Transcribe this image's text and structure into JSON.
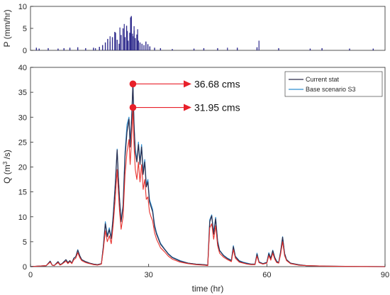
{
  "chart_data": [
    {
      "type": "bar",
      "panel": "precipitation",
      "ylabel": "P (mm/hr)",
      "xlim": [
        0,
        90
      ],
      "ylim": [
        0,
        10
      ],
      "yticks": [
        0,
        5,
        10
      ],
      "grid": false,
      "bar_color": "#2e2a8c",
      "x": [
        1.5,
        2.2,
        4.5,
        7.0,
        8.5,
        10.0,
        12.0,
        14.0,
        16.0,
        17.5,
        18.3,
        19.0,
        19.6,
        20.2,
        20.8,
        21.4,
        22.0,
        22.5,
        23.0,
        23.5,
        24.0,
        24.4,
        24.8,
        25.2,
        25.6,
        26.0,
        26.3,
        26.6,
        27.0,
        27.4,
        27.8,
        28.3,
        28.8,
        29.3,
        29.8,
        30.3,
        31.5,
        33.0,
        36.0,
        41.5,
        44.0,
        47.5,
        52.5,
        57.5,
        63.0,
        71.0,
        74.0,
        81.0,
        87.0
      ],
      "values": [
        0.6,
        0.4,
        0.5,
        0.4,
        0.5,
        0.6,
        0.7,
        0.5,
        0.6,
        0.8,
        1.2,
        1.8,
        2.6,
        2.0,
        3.0,
        4.2,
        2.4,
        1.5,
        3.5,
        5.0,
        3.0,
        5.6,
        2.2,
        4.0,
        7.8,
        3.2,
        4.5,
        2.8,
        3.6,
        2.2,
        1.8,
        1.5,
        1.2,
        2.0,
        1.4,
        0.9,
        0.6,
        0.5,
        0.3,
        0.4,
        0.5,
        0.5,
        0.6,
        0.7,
        0.5,
        0.4,
        0.5,
        0.4,
        0.4
      ],
      "stem_values": [
        [
          25.4,
          7.5
        ],
        [
          23.8,
          6.0
        ],
        [
          26.3,
          5.5
        ],
        [
          22.7,
          5.2
        ],
        [
          27.2,
          4.8
        ],
        [
          21.6,
          4.0
        ],
        [
          24.6,
          4.4
        ],
        [
          20.2,
          3.2
        ],
        [
          25.9,
          3.8
        ],
        [
          58.0,
          2.2
        ],
        [
          16.5,
          0.5
        ],
        [
          50.0,
          0.6
        ]
      ]
    },
    {
      "type": "line",
      "panel": "discharge",
      "xlabel": "time (hr)",
      "ylabel_main": "Q (m",
      "ylabel_sup": "3",
      "ylabel_end": " /s)",
      "xlim": [
        0,
        90
      ],
      "ylim": [
        0,
        40
      ],
      "xticks": [
        0,
        30,
        60,
        90
      ],
      "yticks": [
        0,
        5,
        10,
        15,
        20,
        25,
        30,
        35,
        40
      ],
      "grid": false,
      "legend_placement": "top-right",
      "series": [
        {
          "name": "Current stat",
          "color": "#2b2b4a",
          "x": [
            0,
            4,
            5,
            5.5,
            6,
            7,
            7.5,
            8,
            9,
            9.5,
            10,
            10.5,
            11,
            11.5,
            12,
            12.5,
            13,
            14,
            15,
            16,
            17,
            18,
            18.5,
            19,
            19.5,
            20,
            20.5,
            21,
            21.5,
            22,
            22.3,
            22.6,
            23,
            23.5,
            24,
            24.5,
            25,
            25.3,
            25.7,
            26,
            26.3,
            26.6,
            27,
            27.4,
            27.8,
            28.2,
            28.6,
            29,
            29.4,
            29.8,
            30.2,
            30.6,
            31,
            31.5,
            32,
            33,
            34,
            35,
            36,
            38,
            40,
            42,
            44,
            45,
            45.5,
            46,
            46.5,
            47,
            47.5,
            48,
            49,
            50,
            51,
            51.5,
            52,
            53,
            54,
            55,
            56,
            57,
            57.5,
            58,
            59,
            60,
            60.5,
            61,
            61.5,
            62,
            62.5,
            63,
            63.5,
            64,
            64.5,
            65,
            66,
            68,
            70,
            75,
            80,
            85,
            90
          ],
          "y": [
            0,
            0.2,
            1.1,
            0.3,
            0.2,
            1.0,
            0.4,
            0.6,
            1.4,
            0.8,
            1.2,
            0.7,
            1.7,
            2.0,
            3.3,
            2.2,
            1.4,
            1.0,
            0.7,
            0.5,
            0.4,
            0.6,
            4.0,
            8.6,
            6.0,
            7.4,
            5.6,
            10.0,
            16.0,
            23.4,
            18.0,
            13.5,
            9.0,
            12.0,
            22.0,
            27.0,
            29.6,
            24.0,
            30.0,
            36.68,
            28.0,
            23.0,
            21.0,
            24.5,
            20.5,
            24.0,
            18.5,
            21.0,
            16.0,
            17.0,
            13.0,
            12.0,
            11.0,
            8.0,
            6.5,
            4.5,
            3.5,
            2.5,
            1.8,
            1.1,
            0.7,
            0.5,
            0.4,
            0.3,
            9.0,
            10.2,
            6.5,
            9.6,
            5.0,
            3.2,
            2.2,
            1.6,
            1.2,
            4.0,
            2.0,
            1.1,
            0.8,
            0.6,
            0.5,
            0.5,
            2.5,
            0.9,
            0.6,
            0.8,
            2.6,
            1.6,
            3.2,
            1.8,
            1.0,
            0.8,
            3.0,
            5.9,
            2.6,
            1.4,
            0.7,
            0.4,
            0.2,
            0.1,
            0.05,
            0.02,
            0
          ]
        },
        {
          "name": "Base scenario S3",
          "color": "#2f8fd0",
          "x": [
            0,
            4,
            5,
            5.5,
            6,
            7,
            7.5,
            8,
            9,
            9.5,
            10,
            10.5,
            11,
            11.5,
            12,
            12.5,
            13,
            14,
            15,
            16,
            17,
            18,
            18.5,
            19,
            19.5,
            20,
            20.5,
            21,
            21.5,
            22,
            22.3,
            22.6,
            23,
            23.5,
            24,
            24.5,
            25,
            25.3,
            25.7,
            26,
            26.3,
            26.6,
            27,
            27.4,
            27.8,
            28.2,
            28.6,
            29,
            29.4,
            29.8,
            30.2,
            30.6,
            31,
            31.5,
            32,
            33,
            34,
            35,
            36,
            38,
            40,
            42,
            44,
            45,
            45.5,
            46,
            46.5,
            47,
            47.5,
            48,
            49,
            50,
            51,
            51.5,
            52,
            53,
            54,
            55,
            56,
            57,
            57.5,
            58,
            59,
            60,
            60.5,
            61,
            61.5,
            62,
            62.5,
            63,
            63.5,
            64,
            64.5,
            65,
            66,
            68,
            70,
            75,
            80,
            85,
            90
          ],
          "y": [
            0,
            0.2,
            1.1,
            0.3,
            0.2,
            1.0,
            0.4,
            0.6,
            1.4,
            0.8,
            1.2,
            0.7,
            1.7,
            2.0,
            3.4,
            2.2,
            1.4,
            1.0,
            0.7,
            0.5,
            0.4,
            0.6,
            4.2,
            9.0,
            6.2,
            7.8,
            5.8,
            10.5,
            16.5,
            23.6,
            18.2,
            13.8,
            9.2,
            12.4,
            23.0,
            28.5,
            30.0,
            25.0,
            30.5,
            37.0,
            28.5,
            23.5,
            21.5,
            25.0,
            21.0,
            24.5,
            19.0,
            21.5,
            16.5,
            17.5,
            13.5,
            12.5,
            11.5,
            8.4,
            6.8,
            4.7,
            3.6,
            2.6,
            1.9,
            1.2,
            0.7,
            0.5,
            0.4,
            0.3,
            9.4,
            10.4,
            6.8,
            9.9,
            5.2,
            3.3,
            2.3,
            1.7,
            1.3,
            4.2,
            2.1,
            1.2,
            0.9,
            0.7,
            0.5,
            0.5,
            2.7,
            1.0,
            0.6,
            0.9,
            2.8,
            1.7,
            3.3,
            1.9,
            1.1,
            0.8,
            3.1,
            6.0,
            2.7,
            1.4,
            0.7,
            0.4,
            0.2,
            0.1,
            0.05,
            0.02,
            0
          ]
        },
        {
          "name": "",
          "color": "#e8322e",
          "x": [
            0,
            4,
            5,
            5.5,
            6,
            7,
            7.5,
            8,
            9,
            9.5,
            10,
            10.5,
            11,
            11.5,
            12,
            12.5,
            13,
            14,
            15,
            16,
            17,
            18,
            18.5,
            19,
            19.5,
            20,
            20.5,
            21,
            21.5,
            22,
            22.3,
            22.6,
            23,
            23.5,
            24,
            24.5,
            25,
            25.3,
            25.7,
            26,
            26.3,
            26.6,
            27,
            27.4,
            27.8,
            28.2,
            28.6,
            29,
            29.4,
            29.8,
            30.2,
            30.6,
            31,
            31.5,
            32,
            33,
            34,
            35,
            36,
            38,
            40,
            42,
            44,
            45,
            45.5,
            46,
            46.5,
            47,
            47.5,
            48,
            49,
            50,
            51,
            51.5,
            52,
            53,
            54,
            55,
            56,
            57,
            57.5,
            58,
            59,
            60,
            60.5,
            61,
            61.5,
            62,
            62.5,
            63,
            63.5,
            64,
            64.5,
            65,
            66,
            68,
            70,
            75,
            80,
            85,
            90
          ],
          "y": [
            0,
            0.2,
            0.9,
            0.3,
            0.2,
            0.8,
            0.3,
            0.5,
            1.1,
            0.6,
            1.0,
            0.6,
            1.4,
            1.7,
            2.8,
            1.8,
            1.2,
            0.8,
            0.6,
            0.4,
            0.3,
            0.5,
            3.4,
            7.2,
            5.0,
            6.2,
            4.6,
            8.4,
            13.5,
            19.5,
            15.0,
            11.2,
            7.5,
            10.0,
            18.5,
            23.0,
            25.5,
            20.5,
            26.0,
            31.95,
            24.0,
            19.5,
            17.5,
            21.0,
            17.0,
            20.5,
            15.5,
            17.5,
            13.5,
            14.0,
            11.0,
            10.0,
            9.2,
            6.8,
            5.5,
            3.8,
            3.0,
            2.1,
            1.5,
            0.9,
            0.6,
            0.4,
            0.3,
            0.2,
            7.8,
            8.6,
            5.5,
            8.2,
            4.2,
            2.7,
            1.9,
            1.4,
            1.0,
            3.4,
            1.7,
            0.9,
            0.7,
            0.5,
            0.4,
            0.4,
            2.1,
            0.8,
            0.5,
            0.7,
            2.2,
            1.3,
            2.7,
            1.5,
            0.8,
            0.7,
            2.5,
            5.0,
            2.2,
            1.2,
            0.6,
            0.3,
            0.2,
            0.1,
            0.05,
            0.02,
            0
          ]
        }
      ],
      "annotations": [
        {
          "label": "36.68 cms",
          "x": 26,
          "y": 36.68
        },
        {
          "label": "31.95 cms",
          "x": 26,
          "y": 31.95
        }
      ]
    }
  ]
}
